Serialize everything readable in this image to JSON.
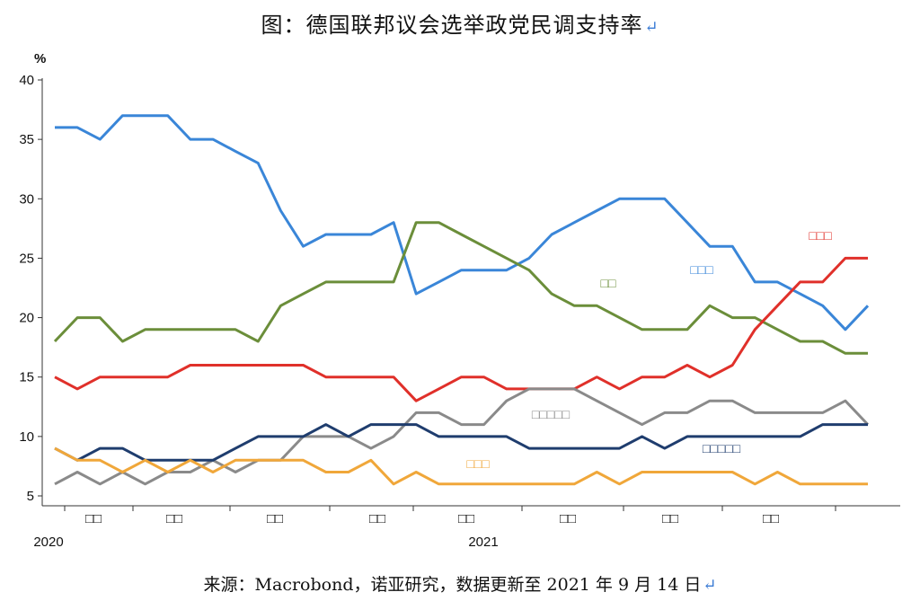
{
  "title": "图：德国联邦议会选举政党民调支持率",
  "source": "来源：Macrobond，诺亚研究，数据更新至 2021 年 9 月 14 日",
  "return_glyph": "↵",
  "chart_data": {
    "type": "line",
    "title": "图：德国联邦议会选举政党民调支持率",
    "ylabel": "%",
    "ylim": [
      5,
      40
    ],
    "yticks": [
      5,
      10,
      15,
      20,
      25,
      30,
      35,
      40
    ],
    "x_labels": [
      "□□",
      "□□",
      "□□",
      "□□",
      "□□",
      "□□",
      "□□",
      "□□"
    ],
    "year_labels": [
      "2020",
      "2021"
    ],
    "grid": false,
    "series": [
      {
        "name": "□□□",
        "color": "#3a86d8",
        "values": [
          36,
          36,
          35,
          37,
          37,
          37,
          35,
          35,
          34,
          33,
          29,
          26,
          27,
          27,
          27,
          28,
          22,
          23,
          24,
          24,
          24,
          25,
          27,
          28,
          29,
          30,
          30,
          30,
          28,
          26,
          26,
          23,
          23,
          22,
          21,
          19,
          21
        ]
      },
      {
        "name": "□□",
        "color": "#6b8e3a",
        "values": [
          18,
          20,
          20,
          18,
          19,
          19,
          19,
          19,
          19,
          18,
          21,
          22,
          23,
          23,
          23,
          23,
          28,
          28,
          27,
          26,
          25,
          24,
          22,
          21,
          21,
          20,
          19,
          19,
          19,
          21,
          20,
          20,
          19,
          18,
          18,
          17,
          17
        ]
      },
      {
        "name": "□□□",
        "color": "#e0302a",
        "values": [
          15,
          14,
          15,
          15,
          15,
          15,
          16,
          16,
          16,
          16,
          16,
          16,
          15,
          15,
          15,
          15,
          13,
          14,
          15,
          15,
          14,
          14,
          14,
          14,
          15,
          14,
          15,
          15,
          16,
          15,
          16,
          19,
          21,
          23,
          23,
          25,
          25
        ]
      },
      {
        "name": "□□□□□",
        "color": "#8a8a8a",
        "values": [
          6,
          7,
          6,
          7,
          6,
          7,
          7,
          8,
          7,
          8,
          8,
          10,
          10,
          10,
          9,
          10,
          12,
          12,
          11,
          11,
          13,
          14,
          14,
          14,
          13,
          12,
          11,
          12,
          12,
          13,
          13,
          12,
          12,
          12,
          12,
          13,
          11
        ]
      },
      {
        "name": "□□□□□",
        "color": "#1f3d6e",
        "values": [
          9,
          8,
          9,
          9,
          8,
          8,
          8,
          8,
          9,
          10,
          10,
          10,
          11,
          10,
          11,
          11,
          11,
          10,
          10,
          10,
          10,
          9,
          9,
          9,
          9,
          9,
          10,
          9,
          10,
          10,
          10,
          10,
          10,
          10,
          11,
          11,
          11
        ]
      },
      {
        "name": "□□□",
        "color": "#f0a73a",
        "values": [
          9,
          8,
          8,
          7,
          8,
          7,
          8,
          7,
          8,
          8,
          8,
          8,
          7,
          7,
          8,
          6,
          7,
          6,
          6,
          6,
          6,
          6,
          6,
          6,
          7,
          6,
          7,
          7,
          7,
          7,
          7,
          6,
          7,
          6,
          6,
          6,
          6
        ]
      }
    ]
  }
}
